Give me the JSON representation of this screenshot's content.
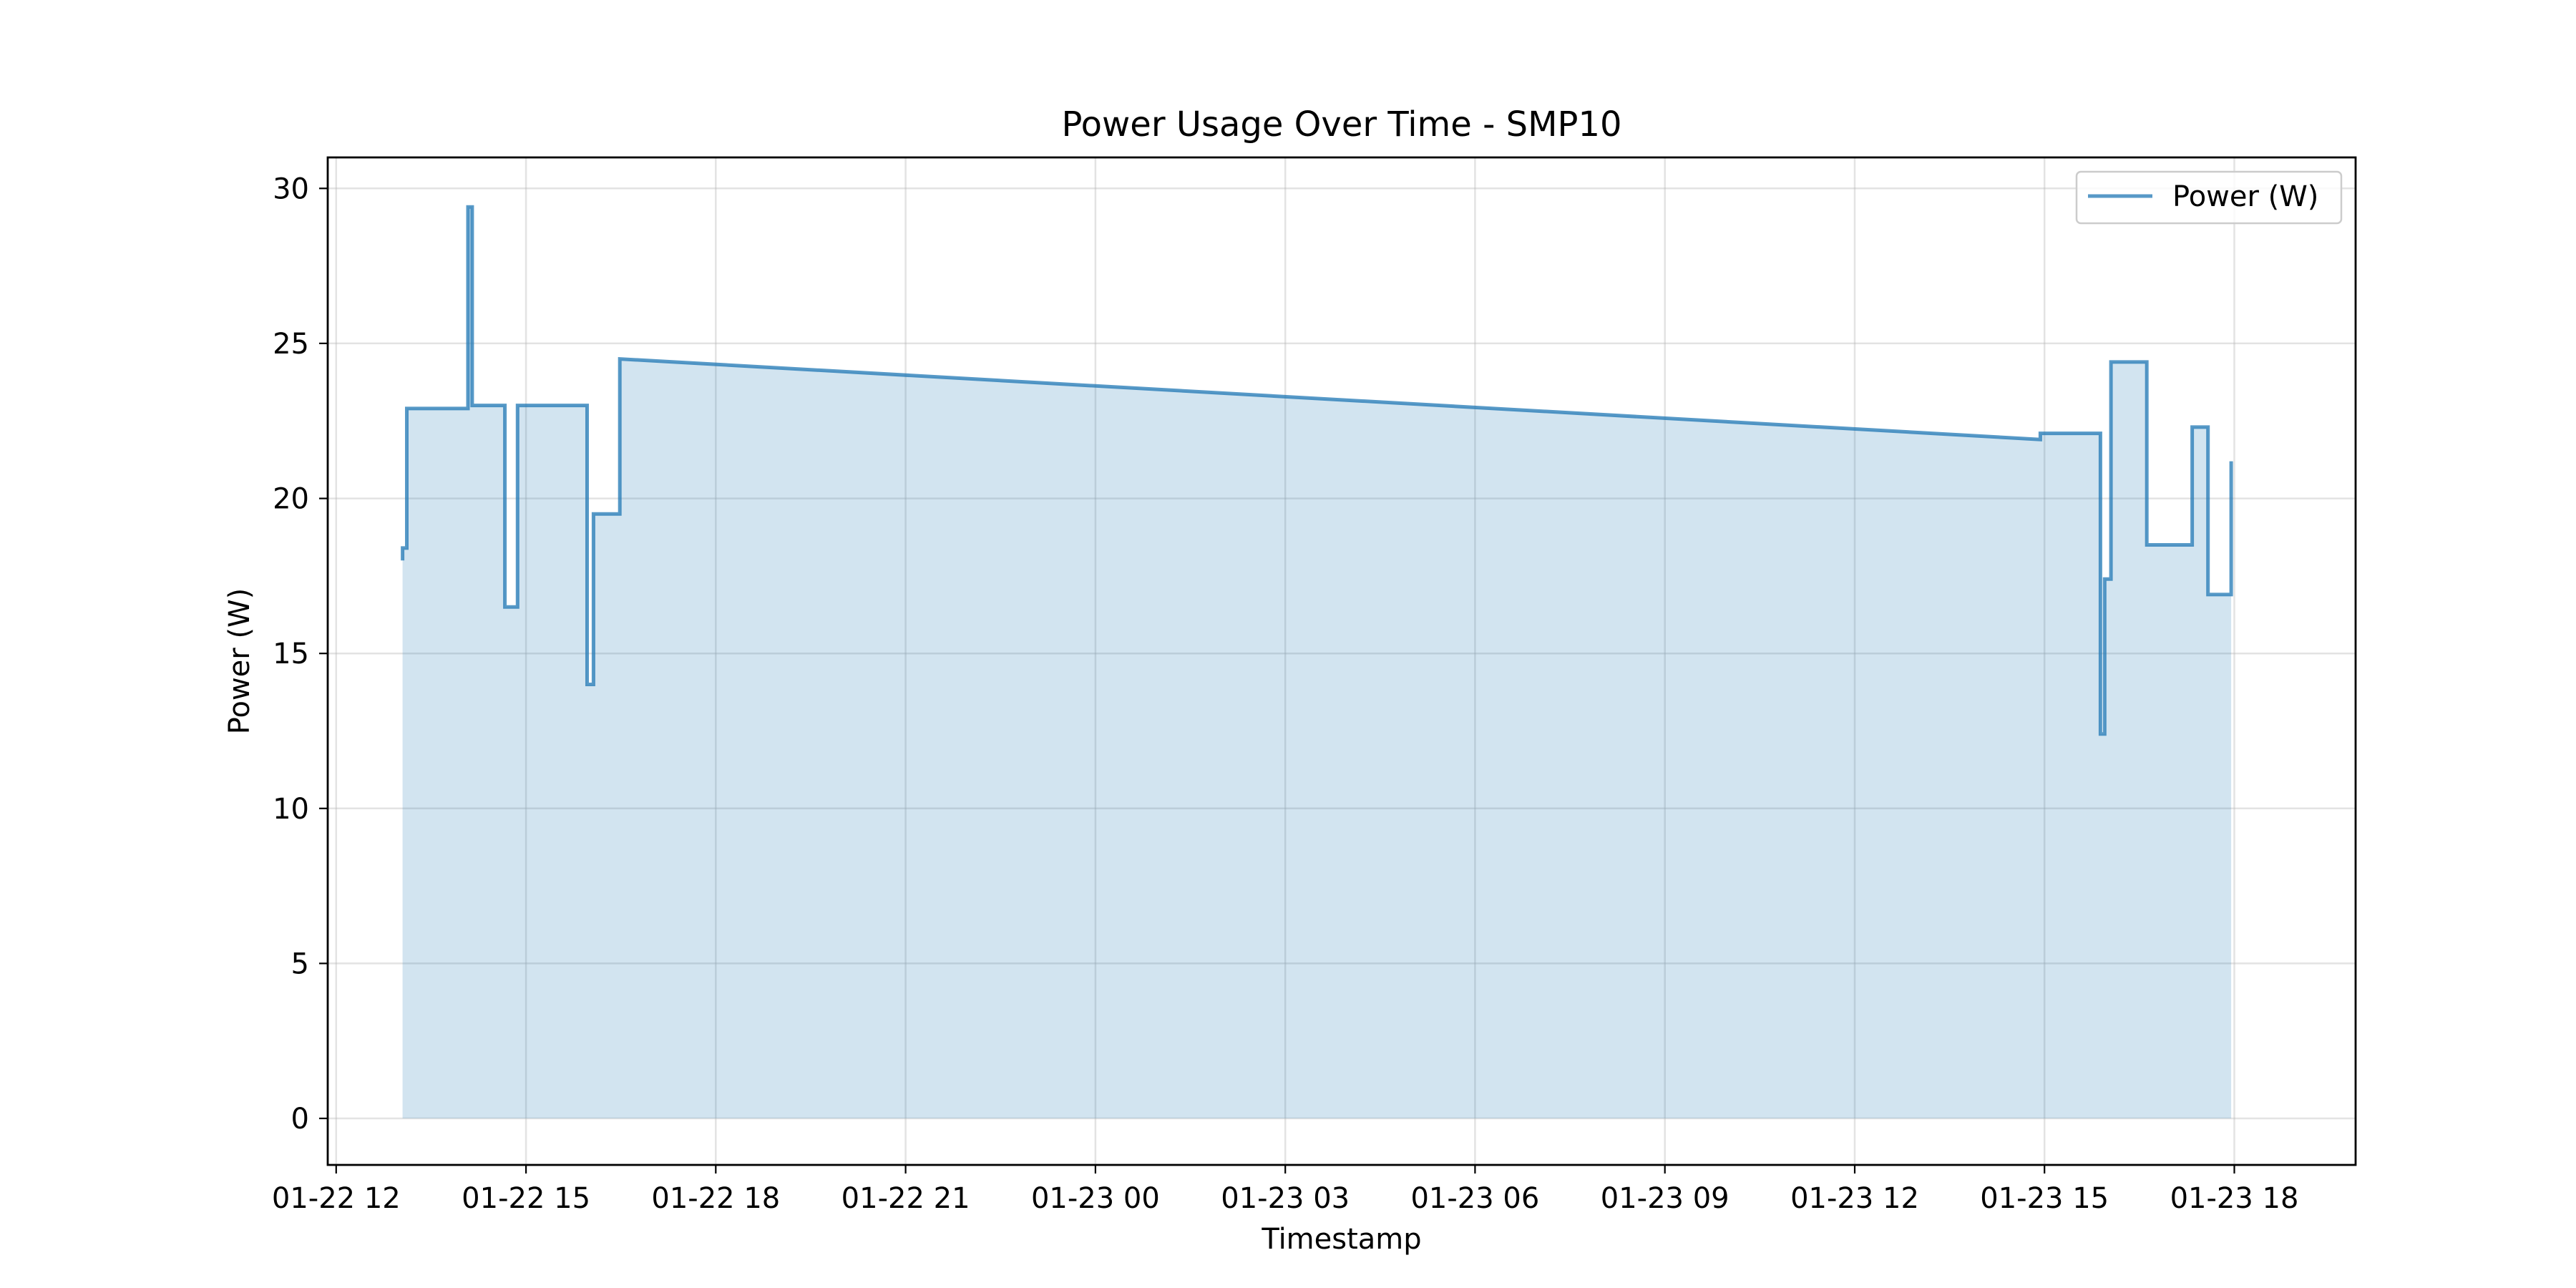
{
  "chart_data": {
    "type": "area",
    "title": "Power Usage Over Time - SMP10",
    "xlabel": "Timestamp",
    "ylabel": "Power (W)",
    "ylim": [
      -1.5,
      31
    ],
    "xlim": [
      "2025-01-22T11:52",
      "2025-01-23T19:55"
    ],
    "grid": true,
    "legend_position": "top-right",
    "x_ticks": [
      {
        "t": "2025-01-22T12:00",
        "label": "01-22 12"
      },
      {
        "t": "2025-01-22T15:00",
        "label": "01-22 15"
      },
      {
        "t": "2025-01-22T18:00",
        "label": "01-22 18"
      },
      {
        "t": "2025-01-22T21:00",
        "label": "01-22 21"
      },
      {
        "t": "2025-01-23T00:00",
        "label": "01-23 00"
      },
      {
        "t": "2025-01-23T03:00",
        "label": "01-23 03"
      },
      {
        "t": "2025-01-23T06:00",
        "label": "01-23 06"
      },
      {
        "t": "2025-01-23T09:00",
        "label": "01-23 09"
      },
      {
        "t": "2025-01-23T12:00",
        "label": "01-23 12"
      },
      {
        "t": "2025-01-23T15:00",
        "label": "01-23 15"
      },
      {
        "t": "2025-01-23T18:00",
        "label": "01-23 18"
      }
    ],
    "y_ticks": [
      0,
      5,
      10,
      15,
      20,
      25,
      30
    ],
    "series": [
      {
        "name": "Power (W)",
        "color": "#1f77b4",
        "fill_color": "#1f77b4",
        "points": [
          {
            "t": "2025-01-22T13:03",
            "v": 18.0
          },
          {
            "t": "2025-01-22T13:03",
            "v": 18.4
          },
          {
            "t": "2025-01-22T13:07",
            "v": 18.4
          },
          {
            "t": "2025-01-22T13:07",
            "v": 22.9
          },
          {
            "t": "2025-01-22T14:05",
            "v": 22.9
          },
          {
            "t": "2025-01-22T14:05",
            "v": 29.4
          },
          {
            "t": "2025-01-22T14:09",
            "v": 29.4
          },
          {
            "t": "2025-01-22T14:09",
            "v": 23.0
          },
          {
            "t": "2025-01-22T14:40",
            "v": 23.0
          },
          {
            "t": "2025-01-22T14:40",
            "v": 16.5
          },
          {
            "t": "2025-01-22T14:52",
            "v": 16.5
          },
          {
            "t": "2025-01-22T14:52",
            "v": 23.0
          },
          {
            "t": "2025-01-22T15:58",
            "v": 23.0
          },
          {
            "t": "2025-01-22T15:58",
            "v": 14.0
          },
          {
            "t": "2025-01-22T16:04",
            "v": 14.0
          },
          {
            "t": "2025-01-22T16:04",
            "v": 19.5
          },
          {
            "t": "2025-01-22T16:29",
            "v": 19.5
          },
          {
            "t": "2025-01-22T16:29",
            "v": 24.5
          },
          {
            "t": "2025-01-23T14:56",
            "v": 21.9
          },
          {
            "t": "2025-01-23T14:56",
            "v": 22.1
          },
          {
            "t": "2025-01-23T15:53",
            "v": 22.1
          },
          {
            "t": "2025-01-23T15:53",
            "v": 12.4
          },
          {
            "t": "2025-01-23T15:57",
            "v": 12.4
          },
          {
            "t": "2025-01-23T15:57",
            "v": 17.4
          },
          {
            "t": "2025-01-23T16:03",
            "v": 17.4
          },
          {
            "t": "2025-01-23T16:03",
            "v": 24.4
          },
          {
            "t": "2025-01-23T16:37",
            "v": 24.4
          },
          {
            "t": "2025-01-23T16:37",
            "v": 18.5
          },
          {
            "t": "2025-01-23T17:20",
            "v": 18.5
          },
          {
            "t": "2025-01-23T17:20",
            "v": 22.3
          },
          {
            "t": "2025-01-23T17:35",
            "v": 22.3
          },
          {
            "t": "2025-01-23T17:35",
            "v": 16.9
          },
          {
            "t": "2025-01-23T17:57",
            "v": 16.9
          },
          {
            "t": "2025-01-23T17:57",
            "v": 21.2
          }
        ]
      }
    ]
  }
}
